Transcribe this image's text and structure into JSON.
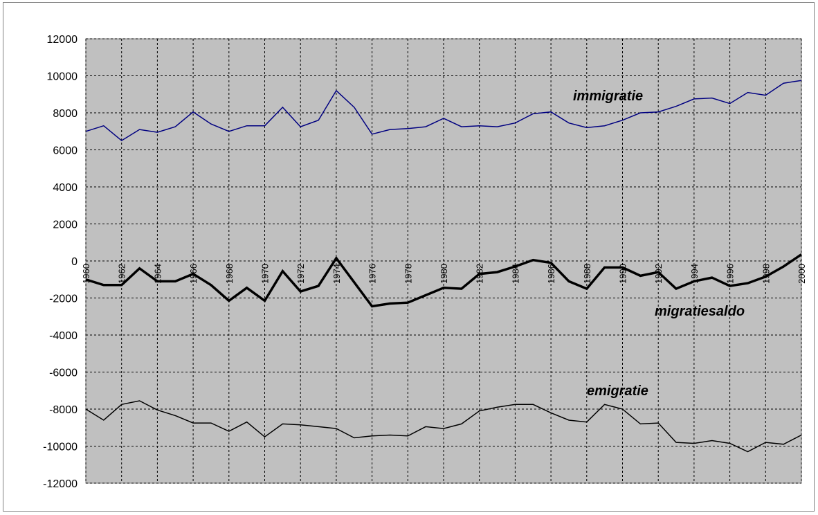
{
  "chart_data": {
    "type": "line",
    "title": "",
    "xlabel": "",
    "ylabel": "",
    "xlim": [
      1960,
      2000
    ],
    "ylim": [
      -12000,
      12000
    ],
    "grid": true,
    "legend": "none",
    "y_ticks": [
      12000,
      10000,
      8000,
      6000,
      4000,
      2000,
      0,
      -2000,
      -4000,
      -6000,
      -8000,
      -10000,
      -12000
    ],
    "x_tick_labels": [
      "1960",
      "1962",
      "1964",
      "1966",
      "1968",
      "1970",
      "1972",
      "1974",
      "1976",
      "1978",
      "1980",
      "1982",
      "1984",
      "1986",
      "1988",
      "1990",
      "1992",
      "1994",
      "1996",
      "1998",
      "2000"
    ],
    "x": [
      1960,
      1961,
      1962,
      1963,
      1964,
      1965,
      1966,
      1967,
      1968,
      1969,
      1970,
      1971,
      1972,
      1973,
      1974,
      1975,
      1976,
      1977,
      1978,
      1979,
      1980,
      1981,
      1982,
      1983,
      1984,
      1985,
      1986,
      1987,
      1988,
      1989,
      1990,
      1991,
      1992,
      1993,
      1994,
      1995,
      1996,
      1997,
      1998,
      1999,
      2000
    ],
    "series": [
      {
        "name": "immigratie",
        "color": "#000080",
        "values": [
          7000,
          7300,
          6500,
          7100,
          6950,
          7250,
          8050,
          7400,
          7000,
          7300,
          7300,
          8300,
          7250,
          7600,
          9200,
          8300,
          6850,
          7100,
          7150,
          7250,
          7700,
          7250,
          7300,
          7250,
          7450,
          7950,
          8050,
          7450,
          7200,
          7300,
          7600,
          8000,
          8050,
          8350,
          8750,
          8800,
          8500,
          9100,
          8950,
          9600,
          9750
        ]
      },
      {
        "name": "migratiesaldo",
        "color": "#000000",
        "values": [
          -1000,
          -1300,
          -1300,
          -400,
          -1100,
          -1100,
          -700,
          -1300,
          -2150,
          -1450,
          -2150,
          -550,
          -1650,
          -1350,
          150,
          -1150,
          -2450,
          -2300,
          -2250,
          -1850,
          -1450,
          -1500,
          -700,
          -600,
          -300,
          50,
          -100,
          -1100,
          -1500,
          -350,
          -350,
          -800,
          -600,
          -1500,
          -1100,
          -900,
          -1350,
          -1200,
          -850,
          -300,
          350
        ]
      },
      {
        "name": "emigratie",
        "color": "#000000",
        "values": [
          -8000,
          -8600,
          -7750,
          -7550,
          -8050,
          -8350,
          -8750,
          -8750,
          -9200,
          -8700,
          -9500,
          -8800,
          -8850,
          -8950,
          -9050,
          -9550,
          -9450,
          -9400,
          -9450,
          -8950,
          -9050,
          -8800,
          -8100,
          -7900,
          -7750,
          -7750,
          -8200,
          -8600,
          -8700,
          -7750,
          -8000,
          -8800,
          -8750,
          -9800,
          -9850,
          -9700,
          -9850,
          -10300,
          -9800,
          -9900,
          -9400
        ]
      }
    ]
  }
}
